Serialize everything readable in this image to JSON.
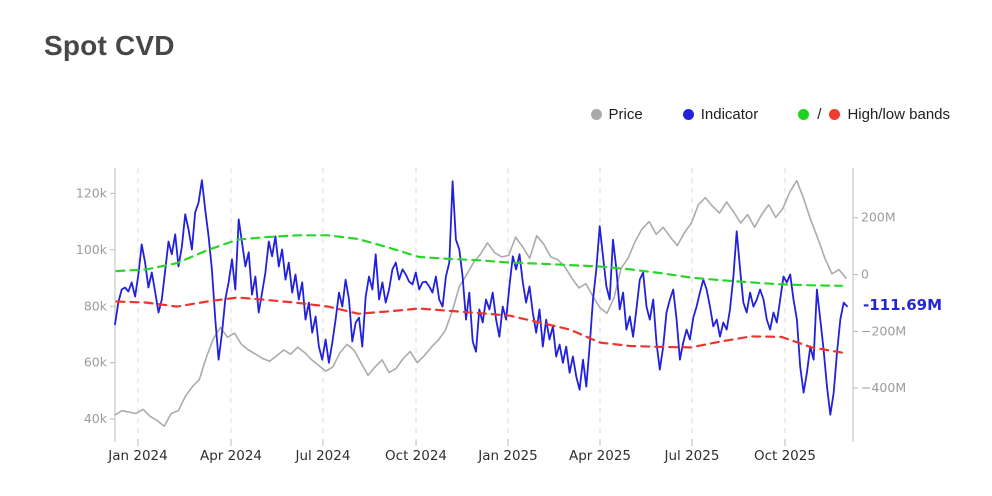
{
  "page": {
    "title": "Spot CVD"
  },
  "legend": {
    "items": [
      {
        "label": "Price",
        "color": "#a9a9ab"
      },
      {
        "label": "Indicator",
        "color": "#2222dd"
      },
      {
        "label": "High/low bands",
        "color_high": "#1ed31e",
        "color_low": "#f23b2e",
        "separator": "/"
      }
    ]
  },
  "chart_data": {
    "type": "line",
    "title": "Spot CVD",
    "grid": "vertical-dashed",
    "legend_position": "top-right",
    "x_axis": {
      "ticks": [
        {
          "label": "Jan 2024",
          "t": 0.0312
        },
        {
          "label": "Apr 2024",
          "t": 0.1572
        },
        {
          "label": "Jul 2024",
          "t": 0.2818
        },
        {
          "label": "Oct 2024",
          "t": 0.4079
        },
        {
          "label": "Jan 2025",
          "t": 0.5325
        },
        {
          "label": "Apr 2025",
          "t": 0.6572
        },
        {
          "label": "Jul 2025",
          "t": 0.7818
        },
        {
          "label": "Oct 2025",
          "t": 0.9078
        }
      ]
    },
    "y_axis_left": {
      "unit": "k",
      "min": 31.9,
      "max": 129.0,
      "ticks": [
        {
          "v": 120,
          "label": "120k"
        },
        {
          "v": 100,
          "label": "100k"
        },
        {
          "v": 80,
          "label": "80k"
        },
        {
          "v": 60,
          "label": "60k"
        },
        {
          "v": 40,
          "label": "40k"
        }
      ]
    },
    "y_axis_right": {
      "unit": "M",
      "min": -590,
      "max": 375,
      "ticks": [
        {
          "v": 200,
          "label": "200M"
        },
        {
          "v": 0,
          "label": "0"
        },
        {
          "v": -200,
          "label": "−200M"
        },
        {
          "v": -400,
          "label": "−400M"
        }
      ]
    },
    "last_value_label": {
      "text": "-111.69M",
      "value": -111.69,
      "color": "#2525d8",
      "axis": "right"
    },
    "series": [
      {
        "name": "Price",
        "axis": "left",
        "color": "#ababab",
        "width": 1.6,
        "dash": "",
        "t0": 0.0,
        "t1": 0.9905,
        "values": [
          41.5,
          43.0,
          42.5,
          42.0,
          43.5,
          41.0,
          39.5,
          37.5,
          42.0,
          43.0,
          48.0,
          51.5,
          54.0,
          62.0,
          68.5,
          72.5,
          69.0,
          70.5,
          66.5,
          64.5,
          63.0,
          61.5,
          60.5,
          62.5,
          64.5,
          63.0,
          65.5,
          63.5,
          61.0,
          59.0,
          57.0,
          58.5,
          63.5,
          66.5,
          64.5,
          60.0,
          55.5,
          58.5,
          61.0,
          56.5,
          58.0,
          61.5,
          64.0,
          60.0,
          62.5,
          65.5,
          68.0,
          71.5,
          78.5,
          87.0,
          91.0,
          95.5,
          98.5,
          102.5,
          99.0,
          97.5,
          98.0,
          104.5,
          101.0,
          97.0,
          105.0,
          102.0,
          97.5,
          96.5,
          94.0,
          90.0,
          86.5,
          88.0,
          83.5,
          79.5,
          77.5,
          83.0,
          93.5,
          97.0,
          103.0,
          107.5,
          110.0,
          105.5,
          108.0,
          104.5,
          101.5,
          106.0,
          109.5,
          116.0,
          118.5,
          115.5,
          113.0,
          117.0,
          113.5,
          109.5,
          112.5,
          108.0,
          112.5,
          116.0,
          111.5,
          114.5,
          120.5,
          124.5,
          118.0,
          110.5,
          104.0,
          97.0,
          91.5,
          93.0,
          90.0
        ]
      },
      {
        "name": "Indicator",
        "axis": "right",
        "color": "#2120dd",
        "width": 1.8,
        "dash": "",
        "t0": 0.0,
        "t1": 0.9919,
        "values": [
          -176,
          -99,
          -53,
          -46,
          -60,
          -28,
          -78,
          0,
          106,
          42,
          -46,
          7,
          -60,
          -134,
          -88,
          11,
          116,
          71,
          141,
          28,
          99,
          212,
          159,
          88,
          219,
          254,
          332,
          229,
          134,
          18,
          -159,
          -300,
          -205,
          -88,
          -28,
          53,
          -53,
          194,
          113,
          28,
          78,
          -71,
          -7,
          -134,
          -64,
          7,
          116,
          64,
          134,
          28,
          88,
          -18,
          42,
          -64,
          0,
          -88,
          -28,
          -159,
          -99,
          -205,
          -148,
          -254,
          -300,
          -229,
          -311,
          -240,
          -159,
          -64,
          -113,
          -18,
          -88,
          -236,
          -169,
          -152,
          -254,
          -78,
          -7,
          -53,
          71,
          -88,
          -28,
          -99,
          -53,
          18,
          42,
          -18,
          18,
          0,
          -25,
          -35,
          7,
          -53,
          -28,
          -25,
          -42,
          -64,
          -7,
          -88,
          -113,
          -7,
          42,
          328,
          123,
          88,
          -7,
          -159,
          -64,
          -236,
          -272,
          -123,
          -169,
          -88,
          -123,
          -64,
          -159,
          -219,
          -113,
          -159,
          -42,
          64,
          18,
          71,
          -28,
          -99,
          -42,
          -134,
          -205,
          -123,
          -254,
          -159,
          -229,
          -183,
          -289,
          -247,
          -311,
          -254,
          -346,
          -289,
          -360,
          -406,
          -300,
          -395,
          -254,
          -88,
          18,
          170,
          64,
          -42,
          -88,
          123,
          18,
          -123,
          -64,
          -194,
          -148,
          -219,
          -123,
          -18,
          7,
          -113,
          -159,
          -88,
          -240,
          -335,
          -254,
          -134,
          -88,
          -53,
          -159,
          -300,
          -240,
          -194,
          -229,
          -152,
          -113,
          -64,
          -18,
          -53,
          -113,
          -183,
          -159,
          -219,
          -169,
          -194,
          -123,
          -7,
          152,
          18,
          -99,
          -134,
          -64,
          -113,
          -88,
          -53,
          -88,
          -159,
          -194,
          -134,
          -169,
          -88,
          -7,
          -28,
          0,
          -88,
          -159,
          -325,
          -416,
          -346,
          -254,
          -300,
          -53,
          -159,
          -265,
          -395,
          -494,
          -416,
          -275,
          -159,
          -99,
          -112
        ]
      },
      {
        "name": "High band",
        "axis": "right",
        "color": "#2ad52a",
        "width": 2.2,
        "dash": "8 6",
        "t0": 0.002,
        "t1": 0.985,
        "values": [
          12,
          18,
          40,
          85,
          123,
          132,
          138,
          138,
          125,
          95,
          62,
          55,
          50,
          42,
          38,
          33,
          28,
          18,
          5,
          -11,
          -20,
          -28,
          -35,
          -38,
          -40
        ]
      },
      {
        "name": "Low band",
        "axis": "right",
        "color": "#ef3430",
        "width": 2.2,
        "dash": "8 6",
        "t0": 0.002,
        "t1": 0.985,
        "values": [
          -95,
          -99,
          -113,
          -95,
          -81,
          -90,
          -100,
          -113,
          -138,
          -130,
          -120,
          -128,
          -136,
          -145,
          -169,
          -194,
          -240,
          -252,
          -255,
          -257,
          -236,
          -218,
          -220,
          -257,
          -275
        ]
      }
    ]
  }
}
